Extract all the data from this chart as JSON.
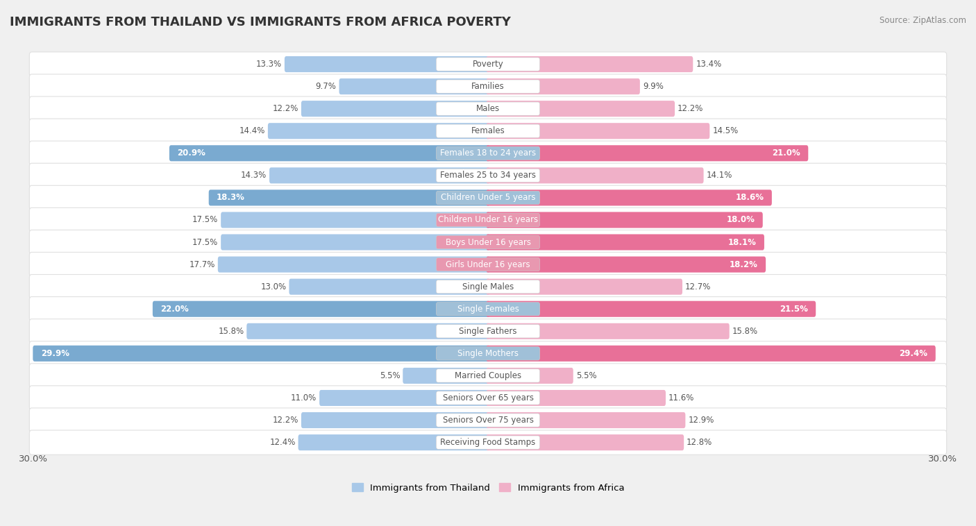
{
  "title": "IMMIGRANTS FROM THAILAND VS IMMIGRANTS FROM AFRICA POVERTY",
  "source": "Source: ZipAtlas.com",
  "categories": [
    "Poverty",
    "Families",
    "Males",
    "Females",
    "Females 18 to 24 years",
    "Females 25 to 34 years",
    "Children Under 5 years",
    "Children Under 16 years",
    "Boys Under 16 years",
    "Girls Under 16 years",
    "Single Males",
    "Single Females",
    "Single Fathers",
    "Single Mothers",
    "Married Couples",
    "Seniors Over 65 years",
    "Seniors Over 75 years",
    "Receiving Food Stamps"
  ],
  "thailand_values": [
    13.3,
    9.7,
    12.2,
    14.4,
    20.9,
    14.3,
    18.3,
    17.5,
    17.5,
    17.7,
    13.0,
    22.0,
    15.8,
    29.9,
    5.5,
    11.0,
    12.2,
    12.4
  ],
  "africa_values": [
    13.4,
    9.9,
    12.2,
    14.5,
    21.0,
    14.1,
    18.6,
    18.0,
    18.1,
    18.2,
    12.7,
    21.5,
    15.8,
    29.4,
    5.5,
    11.6,
    12.9,
    12.8
  ],
  "thailand_color_normal": "#a8c8e8",
  "africa_color_normal": "#f0b0c8",
  "thailand_color_highlight": "#7aaad0",
  "africa_color_highlight": "#e87098",
  "legend_thailand": "Immigrants from Thailand",
  "legend_africa": "Immigrants from Africa",
  "x_max": 30.0,
  "background_color": "#f0f0f0",
  "row_bg_color": "#ffffff",
  "row_edge_color": "#e0e0e0",
  "label_bg_normal": "#ffffff",
  "label_bg_highlight_th": "#a0c0d8",
  "label_bg_highlight_af": "#e898b0",
  "highlight_threshold": 18.0,
  "title_fontsize": 13,
  "value_fontsize": 8.5,
  "label_fontsize": 8.5
}
